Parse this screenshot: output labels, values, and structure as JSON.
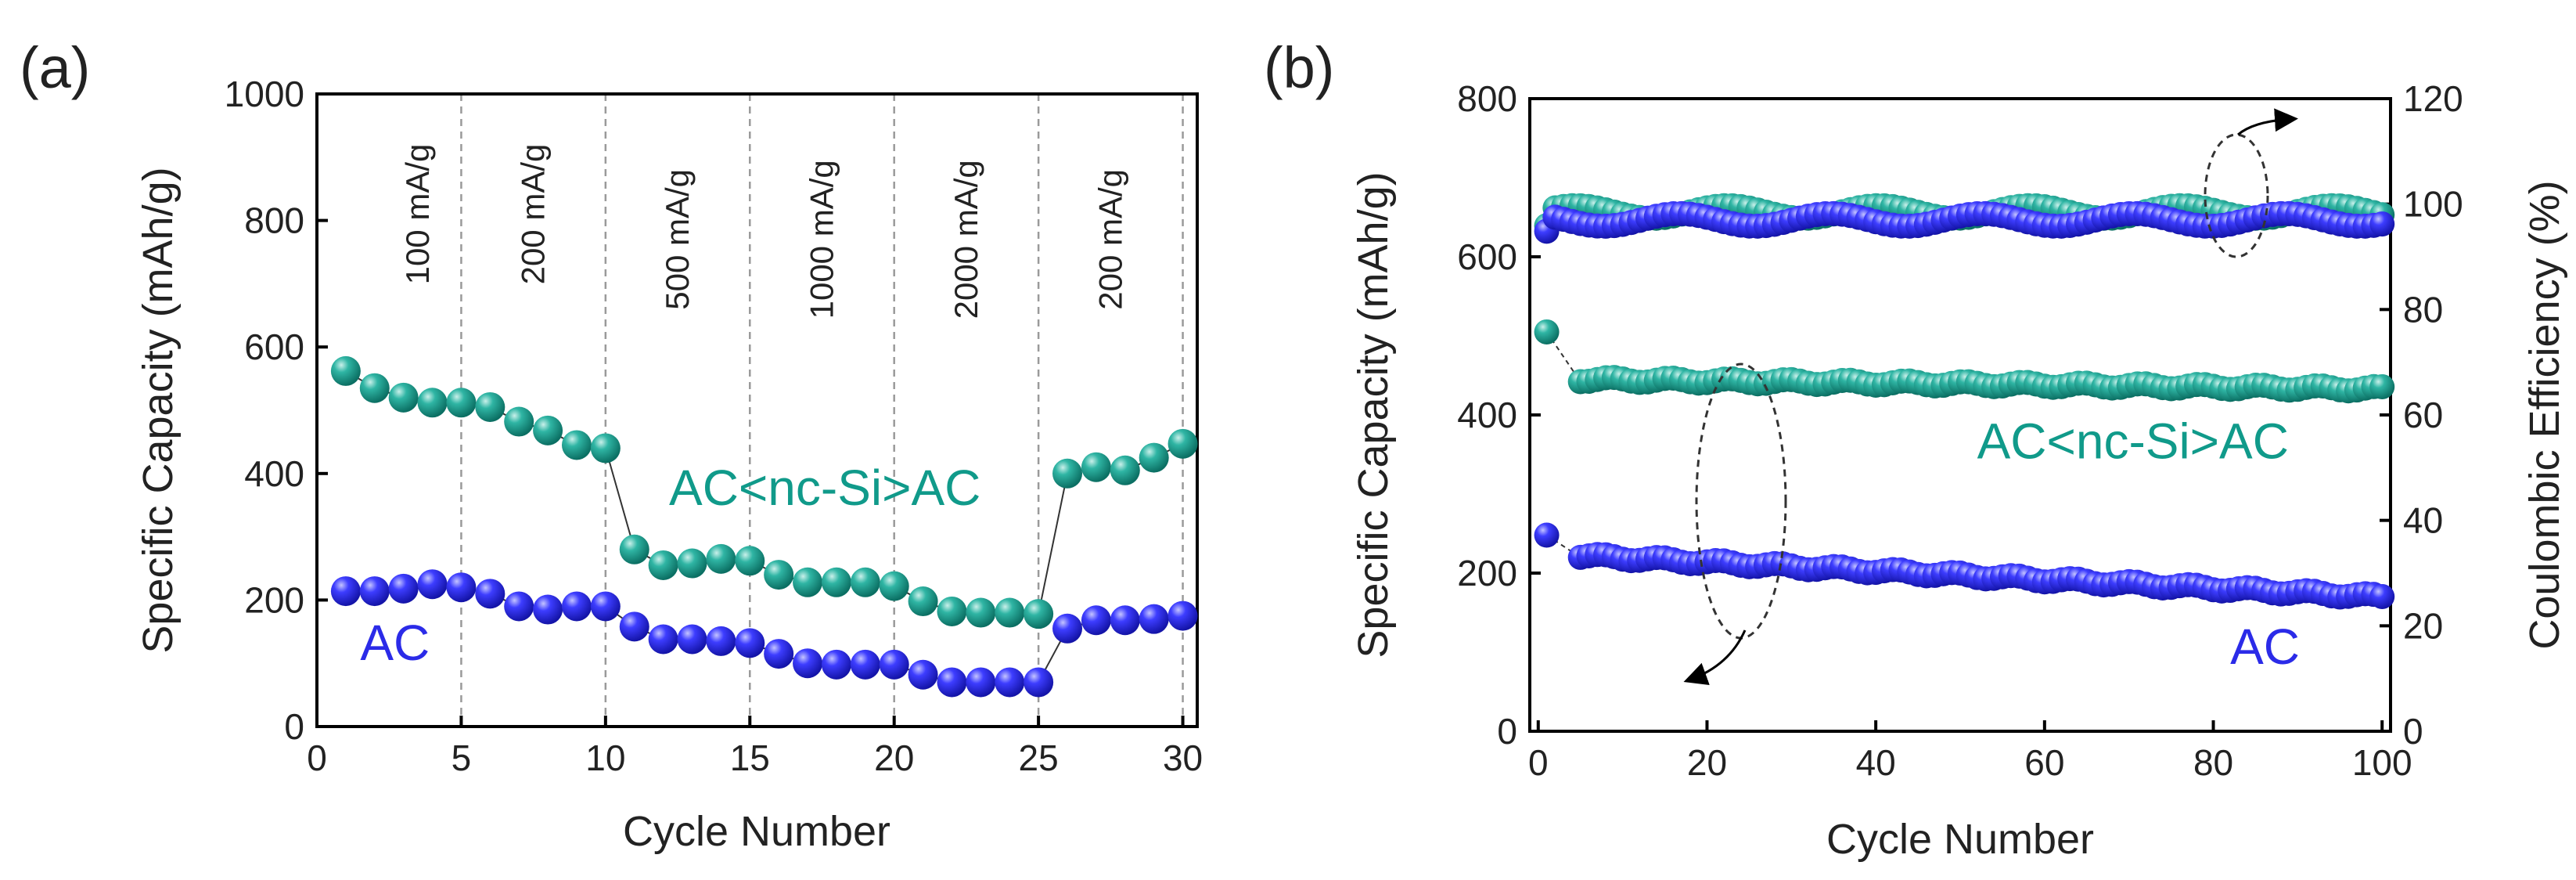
{
  "colors": {
    "teal": "#109a8a",
    "blue": "#2b2be8",
    "connector": "#333333"
  },
  "chart_data": [
    {
      "panel": "(a)",
      "type": "scatter",
      "xlabel": "Cycle Number",
      "ylabel": "Specific Capacity (mAh/g)",
      "xlim": [
        0,
        30.5
      ],
      "ylim": [
        0,
        1000
      ],
      "xticks": [
        0,
        5,
        10,
        15,
        20,
        25,
        30
      ],
      "yticks": [
        0,
        200,
        400,
        600,
        800,
        1000
      ],
      "rate_boundaries": [
        5,
        10,
        15,
        20,
        25,
        30
      ],
      "rate_labels": [
        {
          "text": "100 mA/g",
          "x": 3.5,
          "y": 810
        },
        {
          "text": "200 mA/g",
          "x": 7.5,
          "y": 810
        },
        {
          "text": "500 mA/g",
          "x": 12.5,
          "y": 770
        },
        {
          "text": "1000 mA/g",
          "x": 17.5,
          "y": 770
        },
        {
          "text": "2000 mA/g",
          "x": 22.5,
          "y": 770
        },
        {
          "text": "200 mA/g",
          "x": 27.5,
          "y": 770
        }
      ],
      "series": [
        {
          "name": "AC<nc-Si>AC",
          "color": "#109a8a",
          "label_pos": {
            "x": 12.2,
            "y": 350
          },
          "x": [
            1,
            2,
            3,
            4,
            5,
            6,
            7,
            8,
            9,
            10,
            11,
            12,
            13,
            14,
            15,
            16,
            17,
            18,
            19,
            20,
            21,
            22,
            23,
            24,
            25,
            26,
            27,
            28,
            29,
            30
          ],
          "y": [
            562,
            535,
            520,
            512,
            512,
            505,
            482,
            468,
            445,
            440,
            280,
            255,
            258,
            265,
            262,
            240,
            228,
            228,
            228,
            222,
            198,
            182,
            180,
            180,
            178,
            400,
            410,
            405,
            425,
            447
          ]
        },
        {
          "name": "AC",
          "color": "#2b2be8",
          "label_pos": {
            "x": 1.5,
            "y": 105
          },
          "x": [
            1,
            2,
            3,
            4,
            5,
            6,
            7,
            8,
            9,
            10,
            11,
            12,
            13,
            14,
            15,
            16,
            17,
            18,
            19,
            20,
            21,
            22,
            23,
            24,
            25,
            26,
            27,
            28,
            29,
            30
          ],
          "y": [
            214,
            214,
            218,
            225,
            220,
            210,
            190,
            185,
            190,
            190,
            158,
            138,
            138,
            135,
            132,
            115,
            100,
            98,
            98,
            98,
            82,
            70,
            70,
            70,
            70,
            155,
            168,
            168,
            170,
            175
          ]
        }
      ]
    },
    {
      "panel": "(b)",
      "type": "scatter",
      "xlabel": "Cycle Number",
      "ylabel": "Specific Capacity (mAh/g)",
      "ylabel_right": "Coulombic Efficiency (%)",
      "xlim": [
        -1,
        101
      ],
      "ylim": [
        0,
        800
      ],
      "ylim_right": [
        0,
        120
      ],
      "xticks": [
        0,
        20,
        40,
        60,
        80,
        100
      ],
      "yticks": [
        0,
        200,
        400,
        600,
        800
      ],
      "yticks_right": [
        0,
        20,
        40,
        60,
        80,
        100,
        120
      ],
      "series": [
        {
          "name": "AC<nc-Si>AC",
          "color": "#109a8a",
          "label_pos": {
            "x": 52,
            "y": 345
          },
          "first": 505,
          "plateau_start": 445,
          "plateau_end": 433
        },
        {
          "name": "AC",
          "color": "#2b2be8",
          "label_pos": {
            "x": 82,
            "y": 85
          },
          "first": 248,
          "plateau_start": 222,
          "plateau_end": 170
        },
        {
          "name": "CE AC<nc-Si>AC",
          "color": "#109a8a",
          "axis": "right",
          "level": 98.5
        },
        {
          "name": "CE AC",
          "color": "#2b2be8",
          "axis": "right",
          "level": 97
        }
      ]
    }
  ],
  "labels": {
    "panel_a": "(a)",
    "panel_b": "(b)",
    "xlabel_a": "Cycle Number",
    "ylabel_a": "Specific Capacity (mAh/g)",
    "xlabel_b": "Cycle Number",
    "ylabel_b": "Specific Capacity (mAh/g)",
    "ylabel_b_right": "Coulombic Efficiency (%)",
    "series_teal": "AC<nc-Si>AC",
    "series_blue": "AC"
  }
}
